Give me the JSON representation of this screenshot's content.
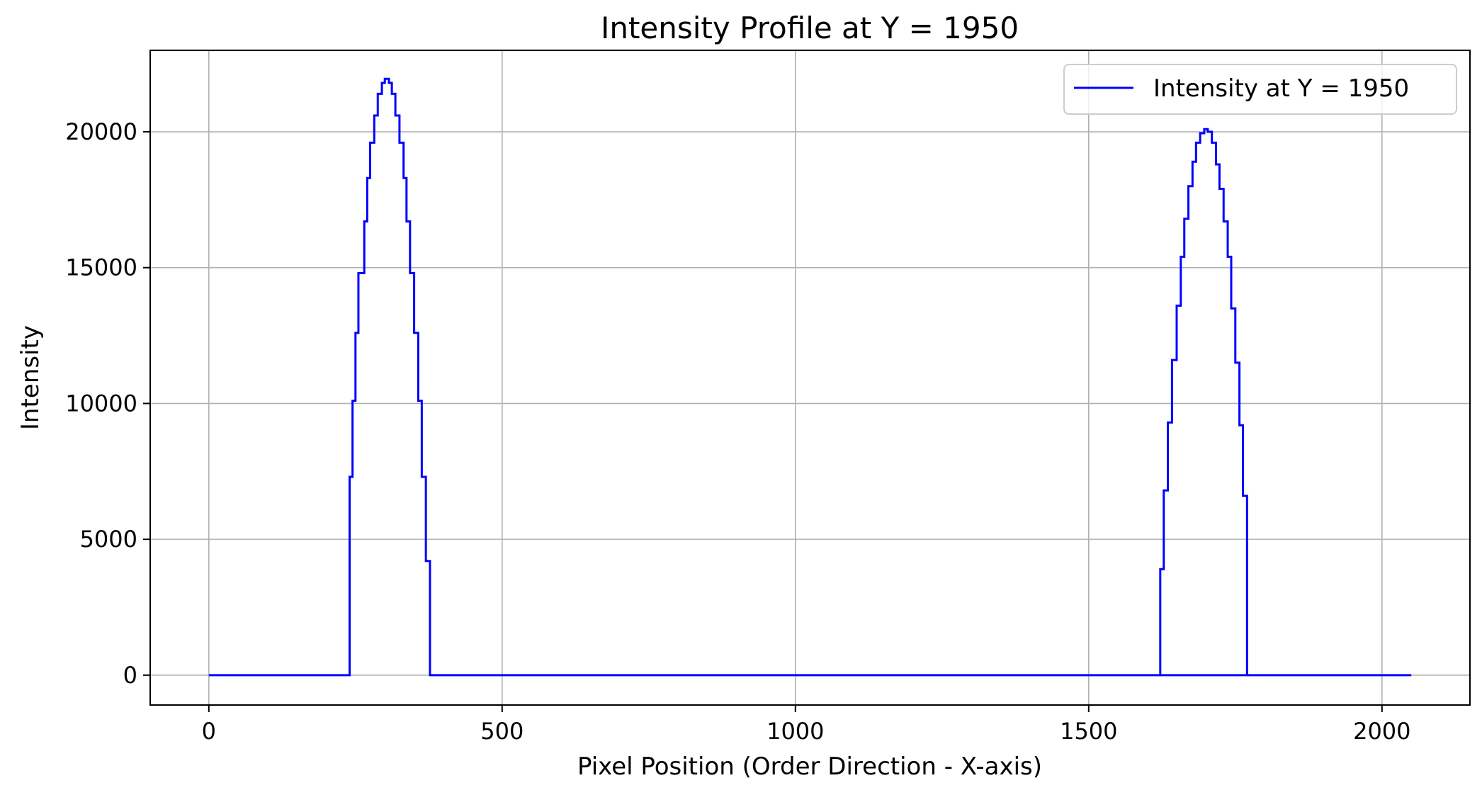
{
  "chart_data": {
    "type": "line",
    "title": "Intensity Profile at Y = 1950",
    "xlabel": "Pixel Position (Order Direction - X-axis)",
    "ylabel": "Intensity",
    "xlim": [
      -100,
      2150
    ],
    "ylim": [
      -1100,
      23000
    ],
    "xticks": [
      0,
      500,
      1000,
      1500,
      2000
    ],
    "xtick_labels": [
      "0",
      "500",
      "1000",
      "1500",
      "2000"
    ],
    "yticks": [
      0,
      5000,
      10000,
      15000,
      20000
    ],
    "ytick_labels": [
      "0",
      "5000",
      "10000",
      "15000",
      "20000"
    ],
    "grid": true,
    "legend_position": "top-right",
    "series": [
      {
        "name": "Intensity at Y = 1950",
        "color": "#0000ff",
        "x": [
          0,
          240,
          240,
          245,
          245,
          250,
          250,
          255,
          255,
          265,
          265,
          270,
          270,
          275,
          275,
          282,
          282,
          288,
          288,
          295,
          295,
          300,
          300,
          307,
          307,
          312,
          312,
          318,
          318,
          325,
          325,
          332,
          332,
          337,
          337,
          343,
          343,
          350,
          350,
          357,
          357,
          363,
          363,
          370,
          370,
          377,
          377,
          383,
          383,
          390,
          390,
          397,
          397,
          403,
          403,
          410,
          410,
          416,
          416,
          2050
        ],
        "values": [
          0,
          0,
          7300,
          7300,
          10100,
          10100,
          12600,
          12600,
          14800,
          14800,
          16700,
          16700,
          18300,
          18300,
          19600,
          19600,
          20600,
          20600,
          21400,
          21400,
          21800,
          21800,
          21950,
          21950,
          21800,
          21800,
          21400,
          21400,
          20600,
          20600,
          19600,
          19600,
          18300,
          18300,
          16700,
          16700,
          14800,
          14800,
          12600,
          12600,
          10100,
          10100,
          7300,
          7300,
          4200,
          4200,
          0,
          0,
          0,
          0,
          0,
          0,
          0,
          0,
          0,
          0,
          0,
          0,
          0,
          0
        ]
      }
    ],
    "series_segments": [
      {
        "x": [
          416,
          1622,
          1622,
          1628,
          1628,
          1635,
          1635,
          1642,
          1642,
          1650,
          1650,
          1657,
          1657,
          1663,
          1663,
          1670,
          1670,
          1677,
          1677,
          1683,
          1683,
          1690,
          1690,
          1697,
          1697,
          1703,
          1703,
          1710,
          1710,
          1717,
          1717,
          1723,
          1723,
          1730,
          1730,
          1737,
          1737,
          1743,
          1743,
          1750,
          1750,
          1757,
          1757,
          1763,
          1763,
          1770,
          1770,
          1777,
          1777,
          1783,
          1783,
          1790,
          1790,
          1797,
          1797,
          1803,
          1803,
          2050
        ],
        "values": [
          0,
          0,
          3900,
          3900,
          6800,
          6800,
          9300,
          9300,
          11600,
          11600,
          13600,
          13600,
          15400,
          15400,
          16800,
          16800,
          18000,
          18000,
          18900,
          18900,
          19600,
          19600,
          19950,
          19950,
          20100,
          20100,
          20000,
          20000,
          19600,
          19600,
          18800,
          18800,
          17900,
          17900,
          16700,
          16700,
          15400,
          15400,
          13500,
          13500,
          11500,
          11500,
          9200,
          9200,
          6600,
          6600,
          0,
          0,
          0,
          0,
          0,
          0,
          0,
          0,
          0,
          0,
          0,
          0
        ]
      }
    ]
  }
}
